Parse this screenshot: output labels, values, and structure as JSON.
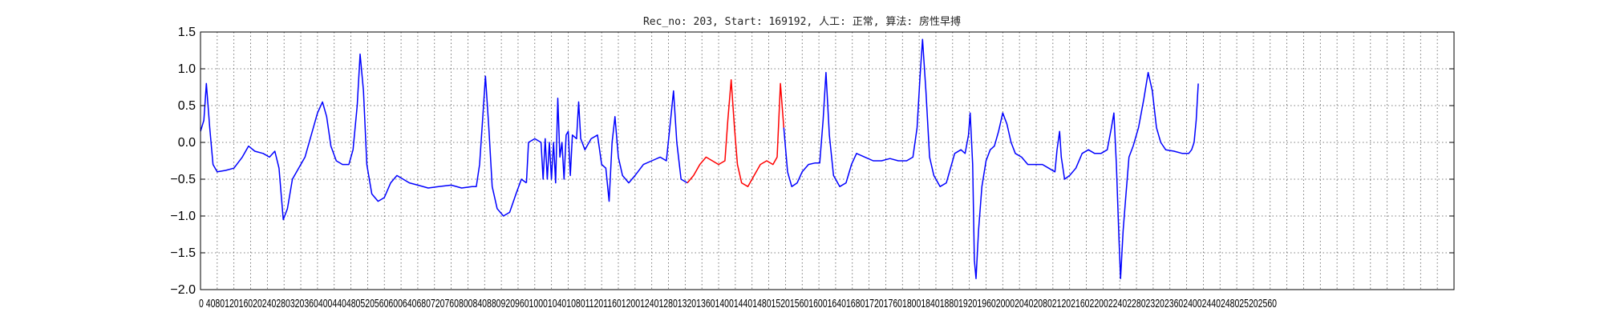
{
  "chart_data": {
    "type": "line",
    "title": "Rec_no: 203, Start: 169192, 人工: 正常, 算法: 房性早搏",
    "xlabel": "",
    "ylabel": "",
    "xlim": [
      0,
      3000
    ],
    "ylim": [
      -2.0,
      1.5
    ],
    "yticks": [
      "1.5",
      "1.0",
      "0.5",
      "0.0",
      "−0.5",
      "−1.0",
      "−1.5",
      "−2.0"
    ],
    "xtick_text": "0 4080120160202402803203604004404805205606006406807207608008408809209601000104010801120116012001240128013201360140014401480152015601600164016801720176018001840188019201960200020402080212021602200224022802320236024002440248025202560",
    "grid": true,
    "series": [
      {
        "color": "#0000ff",
        "points": [
          [
            0,
            0.15
          ],
          [
            8,
            0.3
          ],
          [
            14,
            0.8
          ],
          [
            22,
            0.2
          ],
          [
            30,
            -0.3
          ],
          [
            40,
            -0.4
          ],
          [
            60,
            -0.38
          ],
          [
            80,
            -0.35
          ],
          [
            100,
            -0.2
          ],
          [
            115,
            -0.05
          ],
          [
            130,
            -0.12
          ],
          [
            150,
            -0.15
          ],
          [
            165,
            -0.2
          ],
          [
            178,
            -0.12
          ],
          [
            188,
            -0.35
          ],
          [
            198,
            -1.05
          ],
          [
            208,
            -0.9
          ],
          [
            220,
            -0.5
          ],
          [
            235,
            -0.35
          ],
          [
            250,
            -0.2
          ],
          [
            265,
            0.1
          ],
          [
            280,
            0.4
          ],
          [
            292,
            0.55
          ],
          [
            302,
            0.35
          ],
          [
            312,
            -0.05
          ],
          [
            325,
            -0.25
          ],
          [
            340,
            -0.3
          ],
          [
            355,
            -0.3
          ],
          [
            365,
            -0.1
          ],
          [
            375,
            0.5
          ],
          [
            382,
            1.2
          ],
          [
            390,
            0.7
          ],
          [
            398,
            -0.3
          ],
          [
            410,
            -0.7
          ],
          [
            425,
            -0.8
          ],
          [
            440,
            -0.75
          ],
          [
            455,
            -0.55
          ],
          [
            470,
            -0.45
          ],
          [
            485,
            -0.5
          ],
          [
            500,
            -0.55
          ],
          [
            520,
            -0.58
          ],
          [
            545,
            -0.62
          ],
          [
            570,
            -0.6
          ],
          [
            600,
            -0.58
          ],
          [
            625,
            -0.62
          ],
          [
            650,
            -0.6
          ],
          [
            660,
            -0.6
          ],
          [
            668,
            -0.3
          ],
          [
            675,
            0.3
          ],
          [
            682,
            0.9
          ],
          [
            690,
            0.2
          ],
          [
            698,
            -0.6
          ],
          [
            710,
            -0.9
          ],
          [
            725,
            -1.0
          ],
          [
            740,
            -0.95
          ],
          [
            755,
            -0.7
          ],
          [
            768,
            -0.5
          ],
          [
            780,
            -0.55
          ]
        ]
      },
      {
        "color": "#0000ff",
        "points": [
          [
            780,
            -0.55
          ],
          [
            785,
            0.0
          ],
          [
            800,
            0.05
          ],
          [
            815,
            0.0
          ],
          [
            820,
            -0.5
          ],
          [
            825,
            0.05
          ],
          [
            830,
            -0.5
          ],
          [
            835,
            0.0
          ],
          [
            840,
            -0.5
          ],
          [
            845,
            0.0
          ],
          [
            850,
            -0.55
          ],
          [
            855,
            0.6
          ],
          [
            860,
            -0.2
          ],
          [
            865,
            0.0
          ],
          [
            870,
            -0.5
          ],
          [
            875,
            0.1
          ],
          [
            880,
            0.15
          ],
          [
            885,
            -0.45
          ],
          [
            890,
            0.1
          ],
          [
            900,
            0.05
          ],
          [
            905,
            0.55
          ],
          [
            910,
            0.05
          ],
          [
            920,
            -0.1
          ],
          [
            935,
            0.05
          ],
          [
            950,
            0.1
          ],
          [
            960,
            -0.3
          ],
          [
            970,
            -0.35
          ],
          [
            978,
            -0.8
          ],
          [
            985,
            0.0
          ],
          [
            992,
            0.35
          ],
          [
            1000,
            -0.2
          ],
          [
            1010,
            -0.45
          ],
          [
            1025,
            -0.55
          ],
          [
            1040,
            -0.45
          ],
          [
            1060,
            -0.3
          ],
          [
            1080,
            -0.25
          ],
          [
            1100,
            -0.2
          ],
          [
            1115,
            -0.25
          ],
          [
            1125,
            0.3
          ],
          [
            1132,
            0.7
          ],
          [
            1140,
            0.0
          ],
          [
            1150,
            -0.5
          ],
          [
            1165,
            -0.55
          ]
        ]
      },
      {
        "color": "#ff0000",
        "points": [
          [
            1165,
            -0.55
          ],
          [
            1180,
            -0.45
          ],
          [
            1195,
            -0.3
          ],
          [
            1210,
            -0.2
          ],
          [
            1225,
            -0.25
          ],
          [
            1240,
            -0.3
          ],
          [
            1255,
            -0.25
          ],
          [
            1262,
            0.3
          ],
          [
            1270,
            0.85
          ],
          [
            1278,
            0.2
          ],
          [
            1285,
            -0.3
          ],
          [
            1295,
            -0.55
          ],
          [
            1310,
            -0.6
          ],
          [
            1325,
            -0.45
          ],
          [
            1340,
            -0.3
          ],
          [
            1355,
            -0.25
          ],
          [
            1370,
            -0.3
          ],
          [
            1380,
            -0.2
          ],
          [
            1388,
            0.8
          ],
          [
            1396,
            0.2
          ]
        ]
      },
      {
        "color": "#0000ff",
        "points": [
          [
            1396,
            0.2
          ],
          [
            1405,
            -0.4
          ],
          [
            1415,
            -0.6
          ],
          [
            1428,
            -0.55
          ],
          [
            1440,
            -0.4
          ],
          [
            1455,
            -0.3
          ],
          [
            1470,
            -0.28
          ],
          [
            1482,
            -0.28
          ],
          [
            1490,
            0.3
          ],
          [
            1497,
            0.95
          ],
          [
            1505,
            0.1
          ],
          [
            1515,
            -0.45
          ],
          [
            1530,
            -0.6
          ],
          [
            1545,
            -0.55
          ],
          [
            1558,
            -0.3
          ],
          [
            1570,
            -0.15
          ],
          [
            1590,
            -0.2
          ],
          [
            1610,
            -0.25
          ],
          [
            1630,
            -0.25
          ],
          [
            1650,
            -0.22
          ],
          [
            1670,
            -0.25
          ],
          [
            1690,
            -0.25
          ],
          [
            1705,
            -0.2
          ],
          [
            1715,
            0.2
          ],
          [
            1722,
            0.9
          ],
          [
            1728,
            1.4
          ],
          [
            1736,
            0.7
          ],
          [
            1745,
            -0.2
          ],
          [
            1755,
            -0.45
          ],
          [
            1770,
            -0.6
          ],
          [
            1785,
            -0.55
          ],
          [
            1795,
            -0.35
          ],
          [
            1805,
            -0.15
          ],
          [
            1820,
            -0.1
          ],
          [
            1830,
            -0.15
          ],
          [
            1838,
            0.1
          ],
          [
            1842,
            0.4
          ],
          [
            1848,
            -0.3
          ],
          [
            1852,
            -1.6
          ],
          [
            1856,
            -1.85
          ],
          [
            1862,
            -1.2
          ],
          [
            1870,
            -0.6
          ],
          [
            1880,
            -0.25
          ],
          [
            1890,
            -0.1
          ],
          [
            1900,
            -0.05
          ],
          [
            1910,
            0.15
          ],
          [
            1920,
            0.4
          ],
          [
            1930,
            0.25
          ],
          [
            1940,
            0.0
          ],
          [
            1950,
            -0.15
          ],
          [
            1965,
            -0.2
          ],
          [
            1980,
            -0.3
          ],
          [
            2000,
            -0.3
          ],
          [
            2015,
            -0.3
          ],
          [
            2030,
            -0.35
          ],
          [
            2045,
            -0.4
          ],
          [
            2050,
            -0.1
          ],
          [
            2056,
            0.15
          ],
          [
            2060,
            -0.2
          ],
          [
            2068,
            -0.5
          ],
          [
            2080,
            -0.45
          ],
          [
            2095,
            -0.35
          ],
          [
            2110,
            -0.15
          ],
          [
            2125,
            -0.1
          ],
          [
            2140,
            -0.15
          ],
          [
            2155,
            -0.15
          ],
          [
            2170,
            -0.1
          ],
          [
            2180,
            0.2
          ],
          [
            2186,
            0.4
          ],
          [
            2192,
            -0.3
          ],
          [
            2198,
            -1.3
          ],
          [
            2202,
            -1.85
          ],
          [
            2208,
            -1.2
          ],
          [
            2215,
            -0.7
          ],
          [
            2222,
            -0.2
          ],
          [
            2232,
            -0.05
          ],
          [
            2245,
            0.2
          ],
          [
            2258,
            0.6
          ],
          [
            2268,
            0.95
          ],
          [
            2278,
            0.7
          ],
          [
            2288,
            0.2
          ],
          [
            2298,
            0.0
          ],
          [
            2310,
            -0.1
          ],
          [
            2330,
            -0.12
          ],
          [
            2350,
            -0.15
          ],
          [
            2365,
            -0.15
          ],
          [
            2372,
            -0.1
          ],
          [
            2378,
            0.0
          ],
          [
            2383,
            0.3
          ],
          [
            2388,
            0.8
          ]
        ]
      }
    ]
  }
}
